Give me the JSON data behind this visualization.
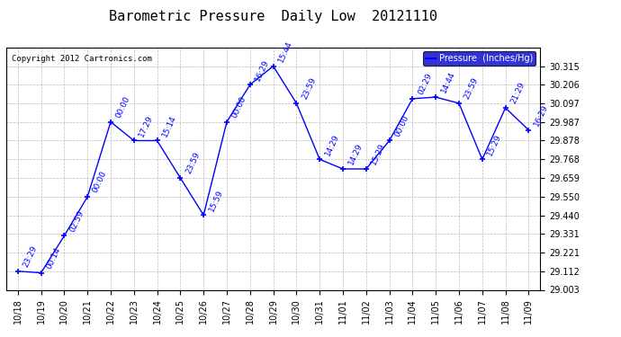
{
  "title": "Barometric Pressure  Daily Low  20121110",
  "copyright": "Copyright 2012 Cartronics.com",
  "legend_label": "Pressure  (Inches/Hg)",
  "x_labels": [
    "10/18",
    "10/19",
    "10/20",
    "10/21",
    "10/22",
    "10/23",
    "10/24",
    "10/25",
    "10/26",
    "10/27",
    "10/28",
    "10/29",
    "10/30",
    "10/31",
    "11/01",
    "11/02",
    "11/03",
    "11/04",
    "11/05",
    "11/06",
    "11/07",
    "11/08",
    "11/09"
  ],
  "y_values": [
    29.112,
    29.103,
    29.32,
    29.549,
    29.988,
    29.878,
    29.878,
    29.659,
    29.441,
    29.988,
    30.206,
    30.315,
    30.097,
    29.768,
    29.712,
    29.712,
    29.878,
    30.124,
    30.133,
    30.097,
    29.768,
    30.07,
    29.94
  ],
  "point_labels": [
    "23:29",
    "00:14",
    "02:59",
    "00:00",
    "00:00",
    "17:29",
    "15:14",
    "23:59",
    "15:59",
    "00:00",
    "16:29",
    "15:44",
    "23:59",
    "14:29",
    "14:29",
    "15:29",
    "00:00",
    "02:29",
    "14:44",
    "23:59",
    "15:29",
    "21:29",
    "16:29"
  ],
  "ylim_min": 29.003,
  "ylim_max": 30.426,
  "yticks": [
    29.003,
    29.112,
    29.221,
    29.331,
    29.44,
    29.55,
    29.659,
    29.768,
    29.878,
    29.987,
    30.097,
    30.206,
    30.315
  ],
  "line_color": "blue",
  "marker": "+",
  "background_color": "#ffffff",
  "grid_color": "#aaaaaa",
  "title_fontsize": 11,
  "label_fontsize": 6.5,
  "tick_fontsize": 7,
  "legend_bg": "#0000cc",
  "legend_fg": "#ffffff"
}
